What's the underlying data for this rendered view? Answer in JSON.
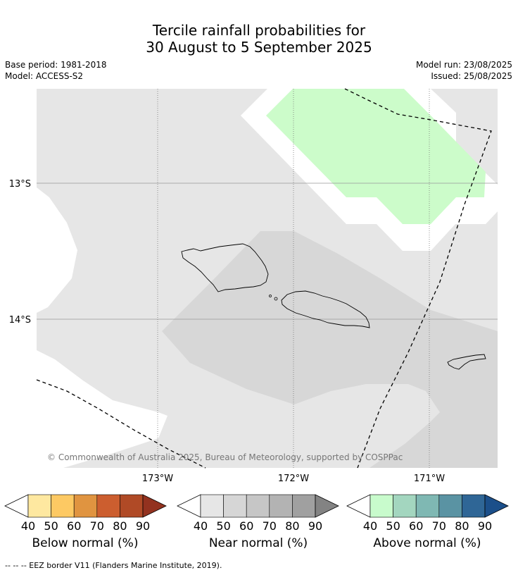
{
  "title_line1": "Tercile rainfall probabilities for",
  "title_line2": "30 August to 5 September 2025",
  "base_period": "Base period: 1981-2018",
  "model": "Model: ACCESS-S2",
  "model_run": "Model run: 23/08/2025",
  "issued": "Issued: 25/08/2025",
  "copyright": "© Commonwealth of Australia 2025, Bureau of Meteorology, supported by COSPPac",
  "lat_labels": [
    "13°S",
    "14°S"
  ],
  "lon_labels": [
    "173°W",
    "172°W",
    "171°W"
  ],
  "colorbars": [
    {
      "label": "Below normal (%)",
      "ticks": [
        "40",
        "50",
        "60",
        "70",
        "80",
        "90"
      ],
      "colors": [
        "#ffffff",
        "#fee8a0",
        "#fdc963",
        "#e09440",
        "#cc5e2f",
        "#b04a26",
        "#93321f"
      ]
    },
    {
      "label": "Near normal (%)",
      "ticks": [
        "40",
        "50",
        "60",
        "70",
        "80",
        "90"
      ],
      "colors": [
        "#ffffff",
        "#e6e6e6",
        "#d6d6d6",
        "#c6c6c6",
        "#b3b3b3",
        "#a0a0a0",
        "#838383"
      ]
    },
    {
      "label": "Above normal (%)",
      "ticks": [
        "40",
        "50",
        "60",
        "70",
        "80",
        "90"
      ],
      "colors": [
        "#ffffff",
        "#c8fbcc",
        "#a3d6bf",
        "#7fb8b3",
        "#5a93a3",
        "#2f6696",
        "#1b4f8a"
      ]
    }
  ],
  "footnote": "--  --  -- EEZ border V11 (Flanders Marine Institute, 2019)."
}
